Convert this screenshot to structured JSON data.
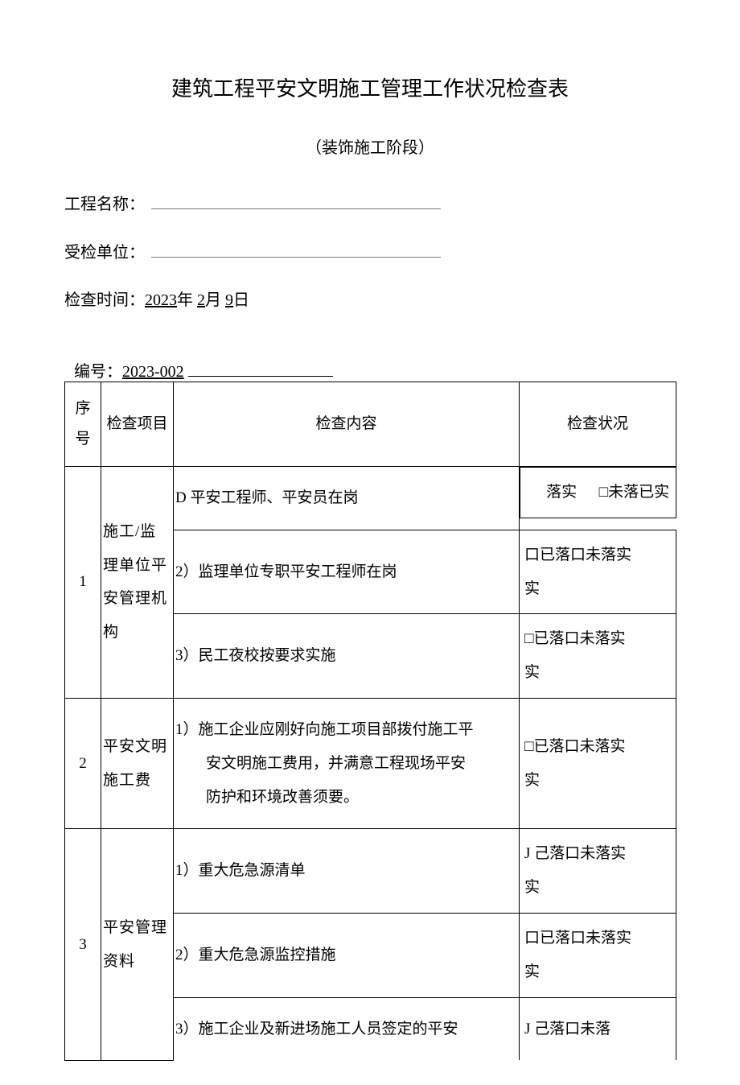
{
  "doc": {
    "title": "建筑工程平安文明施工管理工作状况检查表",
    "subtitle": "（装饰施工阶段）",
    "project_label": "工程名称：",
    "unit_label": "受检单位：",
    "checkdate_label": "检查时间：",
    "checkdate_year": "2023",
    "checkdate_year_suffix": "年",
    "checkdate_month": "2",
    "checkdate_month_suffix": "月",
    "checkdate_day": "9",
    "checkdate_day_suffix": "日",
    "serial_label": "编号：",
    "serial_value": "2023-002"
  },
  "table": {
    "headers": {
      "seq": "序号",
      "item": "检查项目",
      "content": "检查内容",
      "status": "检查状况"
    },
    "rows": {
      "r1": {
        "seq": "1",
        "item": "施工/监理单位平安管理机构",
        "c1": "D 平安工程师、平安员在岗",
        "s1_left": "落实",
        "s1_right": "□未落已实",
        "c2": "2）监理单位专职平安工程师在岗",
        "s2": "口已落口未落实　　　实",
        "c3": "3）民工夜校按要求实施",
        "s3": "□已落口未落实　　　实"
      },
      "r2": {
        "seq": "2",
        "item": "平安文明施工费",
        "c1_l1": "1）施工企业应刚好向施工项目部拨付施工平",
        "c1_l2": "安文明施工费用，并满意工程现场平安",
        "c1_l3": "防护和环境改善须要。",
        "s1": "□已落口未落实　　　实"
      },
      "r3": {
        "seq": "3",
        "item": "平安管理资料",
        "c1": "1）重大危急源清单",
        "s1": "J 己落口未落实　　　实",
        "c2": "2）重大危急源监控措施",
        "s2": "口已落口未落实　　　实",
        "c3": "3）施工企业及新进场施工人员签定的平安",
        "s3": "J 己落口未落"
      }
    }
  },
  "style": {
    "text_color": "#000000",
    "background_color": "#ffffff",
    "border_color": "#000000",
    "underline_color": "#7a7a7a",
    "title_fontsize": 26,
    "body_fontsize": 20,
    "table_fontsize": 19
  }
}
